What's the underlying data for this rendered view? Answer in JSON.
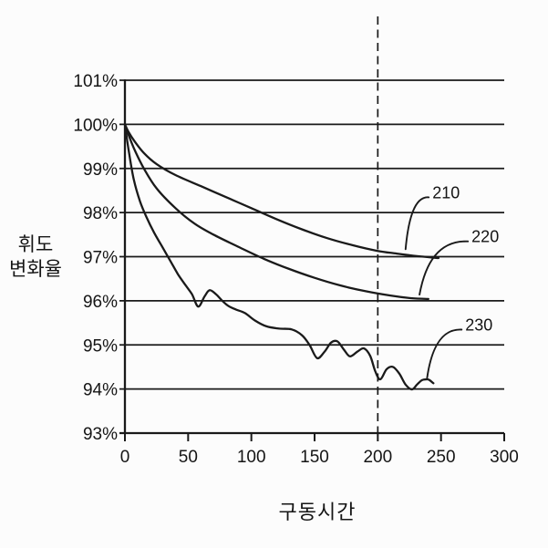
{
  "figure": {
    "background": "#fcfcfc",
    "ink": "#1a1a1a"
  },
  "chart_data": {
    "type": "line",
    "title": "",
    "xlabel": "구동시간",
    "ylabel": "휘도 변화율",
    "ylabel_lines": [
      "휘도",
      "변화율"
    ],
    "xlim": [
      0,
      300
    ],
    "ylim": [
      93,
      101
    ],
    "grid": "horizontal",
    "legend": "none",
    "x_ticks": [
      0,
      50,
      100,
      150,
      200,
      250,
      300
    ],
    "x_tick_labels": [
      "0",
      "50",
      "100",
      "150",
      "200",
      "250",
      "300"
    ],
    "y_ticks": [
      101,
      100,
      99,
      98,
      97,
      96,
      95,
      94,
      93
    ],
    "y_tick_labels": [
      "101%",
      "100%",
      "99%",
      "98%",
      "97%",
      "96%",
      "95%",
      "94%",
      "93%"
    ],
    "reference_line": {
      "axis": "x",
      "value": 200,
      "style": "dashed"
    },
    "series": [
      {
        "name": "210",
        "x": [
          0,
          3,
          8,
          15,
          25,
          40,
          60,
          80,
          100,
          120,
          140,
          160,
          180,
          200,
          215,
          232,
          248
        ],
        "y": [
          100,
          99.82,
          99.6,
          99.35,
          99.1,
          98.85,
          98.6,
          98.35,
          98.1,
          97.85,
          97.62,
          97.42,
          97.26,
          97.13,
          97.07,
          97.01,
          96.97
        ]
      },
      {
        "name": "220",
        "x": [
          0,
          3,
          8,
          15,
          25,
          40,
          55,
          70,
          90,
          110,
          130,
          150,
          170,
          190,
          210,
          226,
          240
        ],
        "y": [
          100,
          99.75,
          99.4,
          99.0,
          98.55,
          98.1,
          97.75,
          97.5,
          97.22,
          96.95,
          96.72,
          96.52,
          96.35,
          96.22,
          96.12,
          96.06,
          96.04
        ]
      },
      {
        "name": "230",
        "x": [
          0,
          3,
          7,
          12,
          17,
          23,
          30,
          36,
          42,
          48,
          53,
          58,
          63,
          67,
          72,
          77,
          82,
          88,
          95,
          103,
          112,
          122,
          132,
          140,
          146,
          152,
          158,
          163,
          168,
          173,
          178,
          184,
          189,
          194,
          198,
          202,
          207,
          212,
          217,
          222,
          227,
          231,
          235,
          239,
          241,
          244
        ],
        "y": [
          100,
          99.4,
          98.75,
          98.25,
          97.9,
          97.55,
          97.2,
          96.9,
          96.6,
          96.35,
          96.15,
          95.87,
          96.1,
          96.24,
          96.15,
          96.0,
          95.88,
          95.8,
          95.72,
          95.55,
          95.42,
          95.37,
          95.35,
          95.22,
          95.0,
          94.7,
          94.85,
          95.05,
          95.08,
          94.9,
          94.74,
          94.85,
          94.92,
          94.75,
          94.4,
          94.22,
          94.45,
          94.5,
          94.35,
          94.1,
          93.99,
          94.1,
          94.2,
          94.22,
          94.2,
          94.13
        ]
      }
    ],
    "annotations": [
      {
        "text": "210",
        "label_x": 254,
        "label_y": 98.45,
        "anchor_x": 222,
        "anchor_y": 97.17
      },
      {
        "text": "220",
        "label_x": 285,
        "label_y": 97.45,
        "anchor_x": 233,
        "anchor_y": 96.14
      },
      {
        "text": "230",
        "label_x": 280,
        "label_y": 95.45,
        "anchor_x": 239,
        "anchor_y": 94.25
      }
    ]
  }
}
